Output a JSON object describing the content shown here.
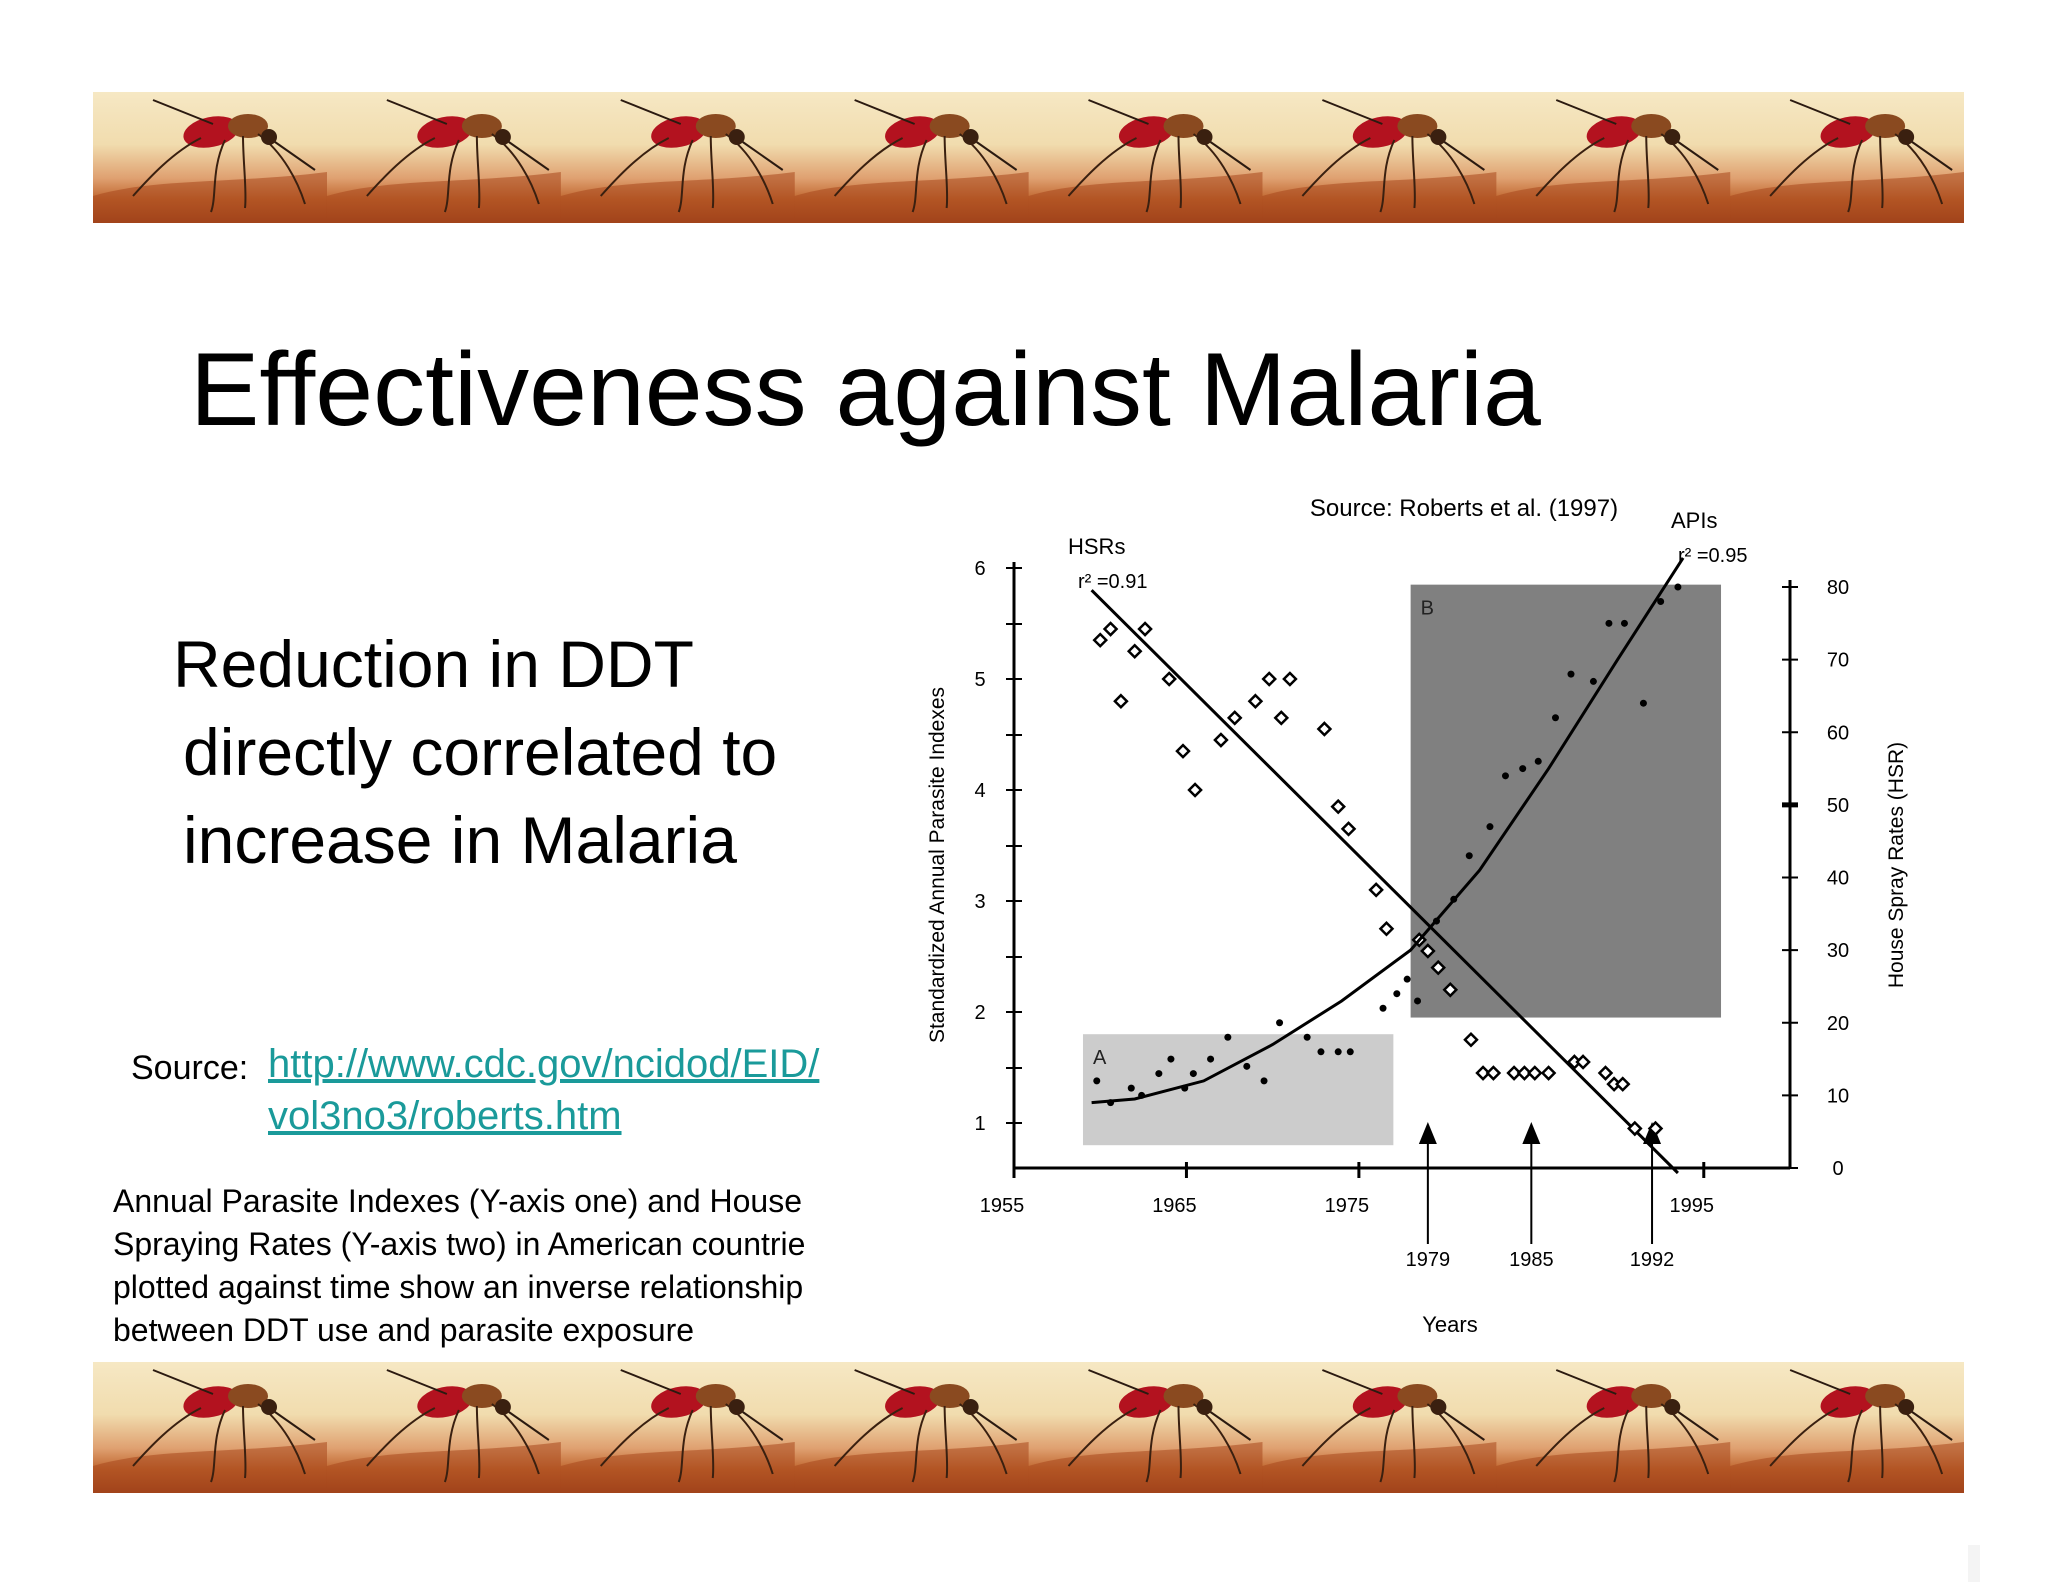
{
  "slide": {
    "title": "Effectiveness against Malaria",
    "bullet_lines": [
      "Reduction in DDT",
      "directly correlated to",
      "increase in Malaria"
    ],
    "source_label": "Source:",
    "source_link_lines": [
      "http://www.cdc.gov/ncidod/EID/",
      "vol3no3/roberts.htm"
    ],
    "caption_lines": [
      "Annual Parasite Indexes (Y-axis one) and House",
      "Spraying Rates (Y-axis two) in American countrie",
      "plotted against time show an inverse relationship",
      "between DDT use and parasite exposure"
    ],
    "banner_icon": "mosquito-icon",
    "link_color": "#1a9a9a"
  },
  "chart_data": {
    "type": "scatter",
    "source_note": "Source: Roberts et al. (1997)",
    "xlabel": "Years",
    "ylabel": "Standardized Annual Parasite Indexes",
    "y2label": "House Spray Rates (HSR)",
    "xlim": [
      1955,
      2000
    ],
    "ylim": [
      0.5,
      6
    ],
    "y2lim": [
      0,
      80
    ],
    "x_ticks": [
      "1955",
      "1965",
      "1975",
      "1995"
    ],
    "x_ticks_values": [
      1955,
      1965,
      1975,
      1995
    ],
    "y_ticks": [
      "1",
      "2",
      "3",
      "4",
      "5",
      "6"
    ],
    "y2_ticks": [
      "0",
      "10",
      "20",
      "30",
      "40",
      "50",
      "60",
      "70",
      "80"
    ],
    "annotations": [
      {
        "label": "1979",
        "x": 1979
      },
      {
        "label": "1985",
        "x": 1985
      },
      {
        "label": "1992",
        "x": 1992
      }
    ],
    "regions": [
      {
        "label": "A",
        "x0": 1959,
        "x1": 1977,
        "y0": 0.8,
        "y1": 1.8,
        "color": "#cccccc"
      },
      {
        "label": "B",
        "x0": 1978,
        "x1": 1996,
        "y0": 1.95,
        "y1": 5.85,
        "color": "#808080"
      }
    ],
    "series": [
      {
        "name": "HSRs",
        "r2_label": "r² =0.91",
        "axis": "left",
        "marker": "diamond",
        "points": [
          [
            1960,
            5.35
          ],
          [
            1960.6,
            5.45
          ],
          [
            1961.2,
            4.8
          ],
          [
            1962,
            5.25
          ],
          [
            1962.6,
            5.45
          ],
          [
            1964,
            5.0
          ],
          [
            1964.8,
            4.35
          ],
          [
            1965.5,
            4.0
          ],
          [
            1967,
            4.45
          ],
          [
            1967.8,
            4.65
          ],
          [
            1969,
            4.8
          ],
          [
            1969.8,
            5.0
          ],
          [
            1970.5,
            4.65
          ],
          [
            1971,
            5.0
          ],
          [
            1973,
            4.55
          ],
          [
            1973.8,
            3.85
          ],
          [
            1974.4,
            3.65
          ],
          [
            1976,
            3.1
          ],
          [
            1976.6,
            2.75
          ],
          [
            1978.5,
            2.65
          ],
          [
            1979,
            2.55
          ],
          [
            1979.6,
            2.4
          ],
          [
            1980.3,
            2.2
          ],
          [
            1981.5,
            1.75
          ],
          [
            1982.2,
            1.45
          ],
          [
            1982.8,
            1.45
          ],
          [
            1984,
            1.45
          ],
          [
            1984.6,
            1.45
          ],
          [
            1985.2,
            1.45
          ],
          [
            1986,
            1.45
          ],
          [
            1987.5,
            1.55
          ],
          [
            1988,
            1.55
          ],
          [
            1989.3,
            1.45
          ],
          [
            1989.8,
            1.35
          ],
          [
            1990.3,
            1.35
          ],
          [
            1991,
            0.95
          ],
          [
            1992.2,
            0.95
          ]
        ],
        "trend": [
          [
            1959.5,
            5.8
          ],
          [
            1993.5,
            0.55
          ]
        ]
      },
      {
        "name": "APIs",
        "r2_label": "r² =0.95",
        "axis": "right",
        "marker": "dot",
        "points": [
          [
            1959.8,
            12
          ],
          [
            1960.6,
            9
          ],
          [
            1961.8,
            11
          ],
          [
            1962.4,
            10
          ],
          [
            1963.4,
            13
          ],
          [
            1964.1,
            15
          ],
          [
            1964.9,
            11
          ],
          [
            1965.4,
            13
          ],
          [
            1966.4,
            15
          ],
          [
            1967.4,
            18
          ],
          [
            1968.5,
            14
          ],
          [
            1969.5,
            12
          ],
          [
            1970.4,
            20
          ],
          [
            1972,
            18
          ],
          [
            1972.8,
            16
          ],
          [
            1973.8,
            16
          ],
          [
            1974.5,
            16
          ],
          [
            1976.4,
            22
          ],
          [
            1977.2,
            24
          ],
          [
            1977.8,
            26
          ],
          [
            1978.4,
            23
          ],
          [
            1979.5,
            34
          ],
          [
            1980.5,
            37
          ],
          [
            1981.4,
            43
          ],
          [
            1982.6,
            47
          ],
          [
            1983.5,
            54
          ],
          [
            1984.5,
            55
          ],
          [
            1985.4,
            56
          ],
          [
            1986.4,
            62
          ],
          [
            1987.3,
            68
          ],
          [
            1988.6,
            67
          ],
          [
            1989.5,
            75
          ],
          [
            1990.4,
            75
          ],
          [
            1991.5,
            64
          ],
          [
            1992.5,
            78
          ],
          [
            1993.5,
            80
          ]
        ],
        "trend": [
          [
            1959.5,
            9
          ],
          [
            1962,
            9.5
          ],
          [
            1966,
            12
          ],
          [
            1970,
            17
          ],
          [
            1974,
            23
          ],
          [
            1978,
            30
          ],
          [
            1982,
            41
          ],
          [
            1986,
            55
          ],
          [
            1990,
            70
          ],
          [
            1993.8,
            84
          ]
        ]
      }
    ]
  }
}
